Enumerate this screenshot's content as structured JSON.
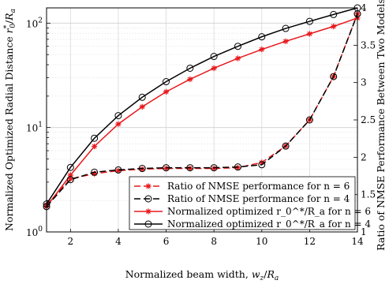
{
  "chart_data": {
    "type": "line",
    "title": "",
    "xlabel": "Normalized beam width, w_z/R_a",
    "ylabel_left": "Normalized Optimized Radial Distance r_0^*/R_a",
    "ylabel_right": "Ratio of NMSE Performance Between Two Models",
    "x_ticks": [
      "2",
      "4",
      "6",
      "8",
      "10",
      "12",
      "14"
    ],
    "y_left_ticks": [
      "10^0",
      "10^1",
      "10^2"
    ],
    "y_right_ticks": [
      "1",
      "1.5",
      "2",
      "2.5",
      "3",
      "3.5",
      "4"
    ],
    "xlim": [
      1,
      14
    ],
    "ylim_left": [
      1,
      140
    ],
    "ylim_left_scale": "log",
    "ylim_right": [
      1,
      4
    ],
    "grid": true,
    "legend_position": "bottom-right",
    "x": [
      1,
      2,
      3,
      4,
      5,
      6,
      7,
      8,
      9,
      10,
      11,
      12,
      13,
      14
    ],
    "series": [
      {
        "name": "Ratio of NMSE performance for n = 6",
        "axis": "right",
        "color": "#e8181c",
        "style": "dashed-star",
        "values": [
          1.36,
          1.71,
          1.78,
          1.82,
          1.84,
          1.85,
          1.85,
          1.85,
          1.86,
          1.93,
          2.15,
          2.5,
          3.08,
          3.92
        ]
      },
      {
        "name": "Ratio of NMSE performance for n = 4",
        "axis": "right",
        "color": "#000000",
        "style": "dashed-circle",
        "values": [
          1.34,
          1.7,
          1.8,
          1.83,
          1.85,
          1.86,
          1.86,
          1.86,
          1.87,
          1.9,
          2.15,
          2.5,
          3.08,
          3.92
        ]
      },
      {
        "name": "Normalized optimized r_0^*/R_a for n = 6",
        "axis": "left",
        "color": "#e8181c",
        "style": "solid-star",
        "values": [
          1.75,
          3.5,
          6.6,
          10.8,
          15.8,
          22,
          29,
          37,
          46,
          56,
          67,
          79,
          93,
          112
        ]
      },
      {
        "name": "Normalized optimized r_0^*/R_a for n = 4",
        "axis": "left",
        "color": "#000000",
        "style": "solid-circle",
        "values": [
          1.85,
          4.15,
          7.9,
          13,
          19.5,
          27.5,
          37,
          48,
          60,
          74,
          89,
          104,
          121,
          140
        ]
      }
    ]
  }
}
